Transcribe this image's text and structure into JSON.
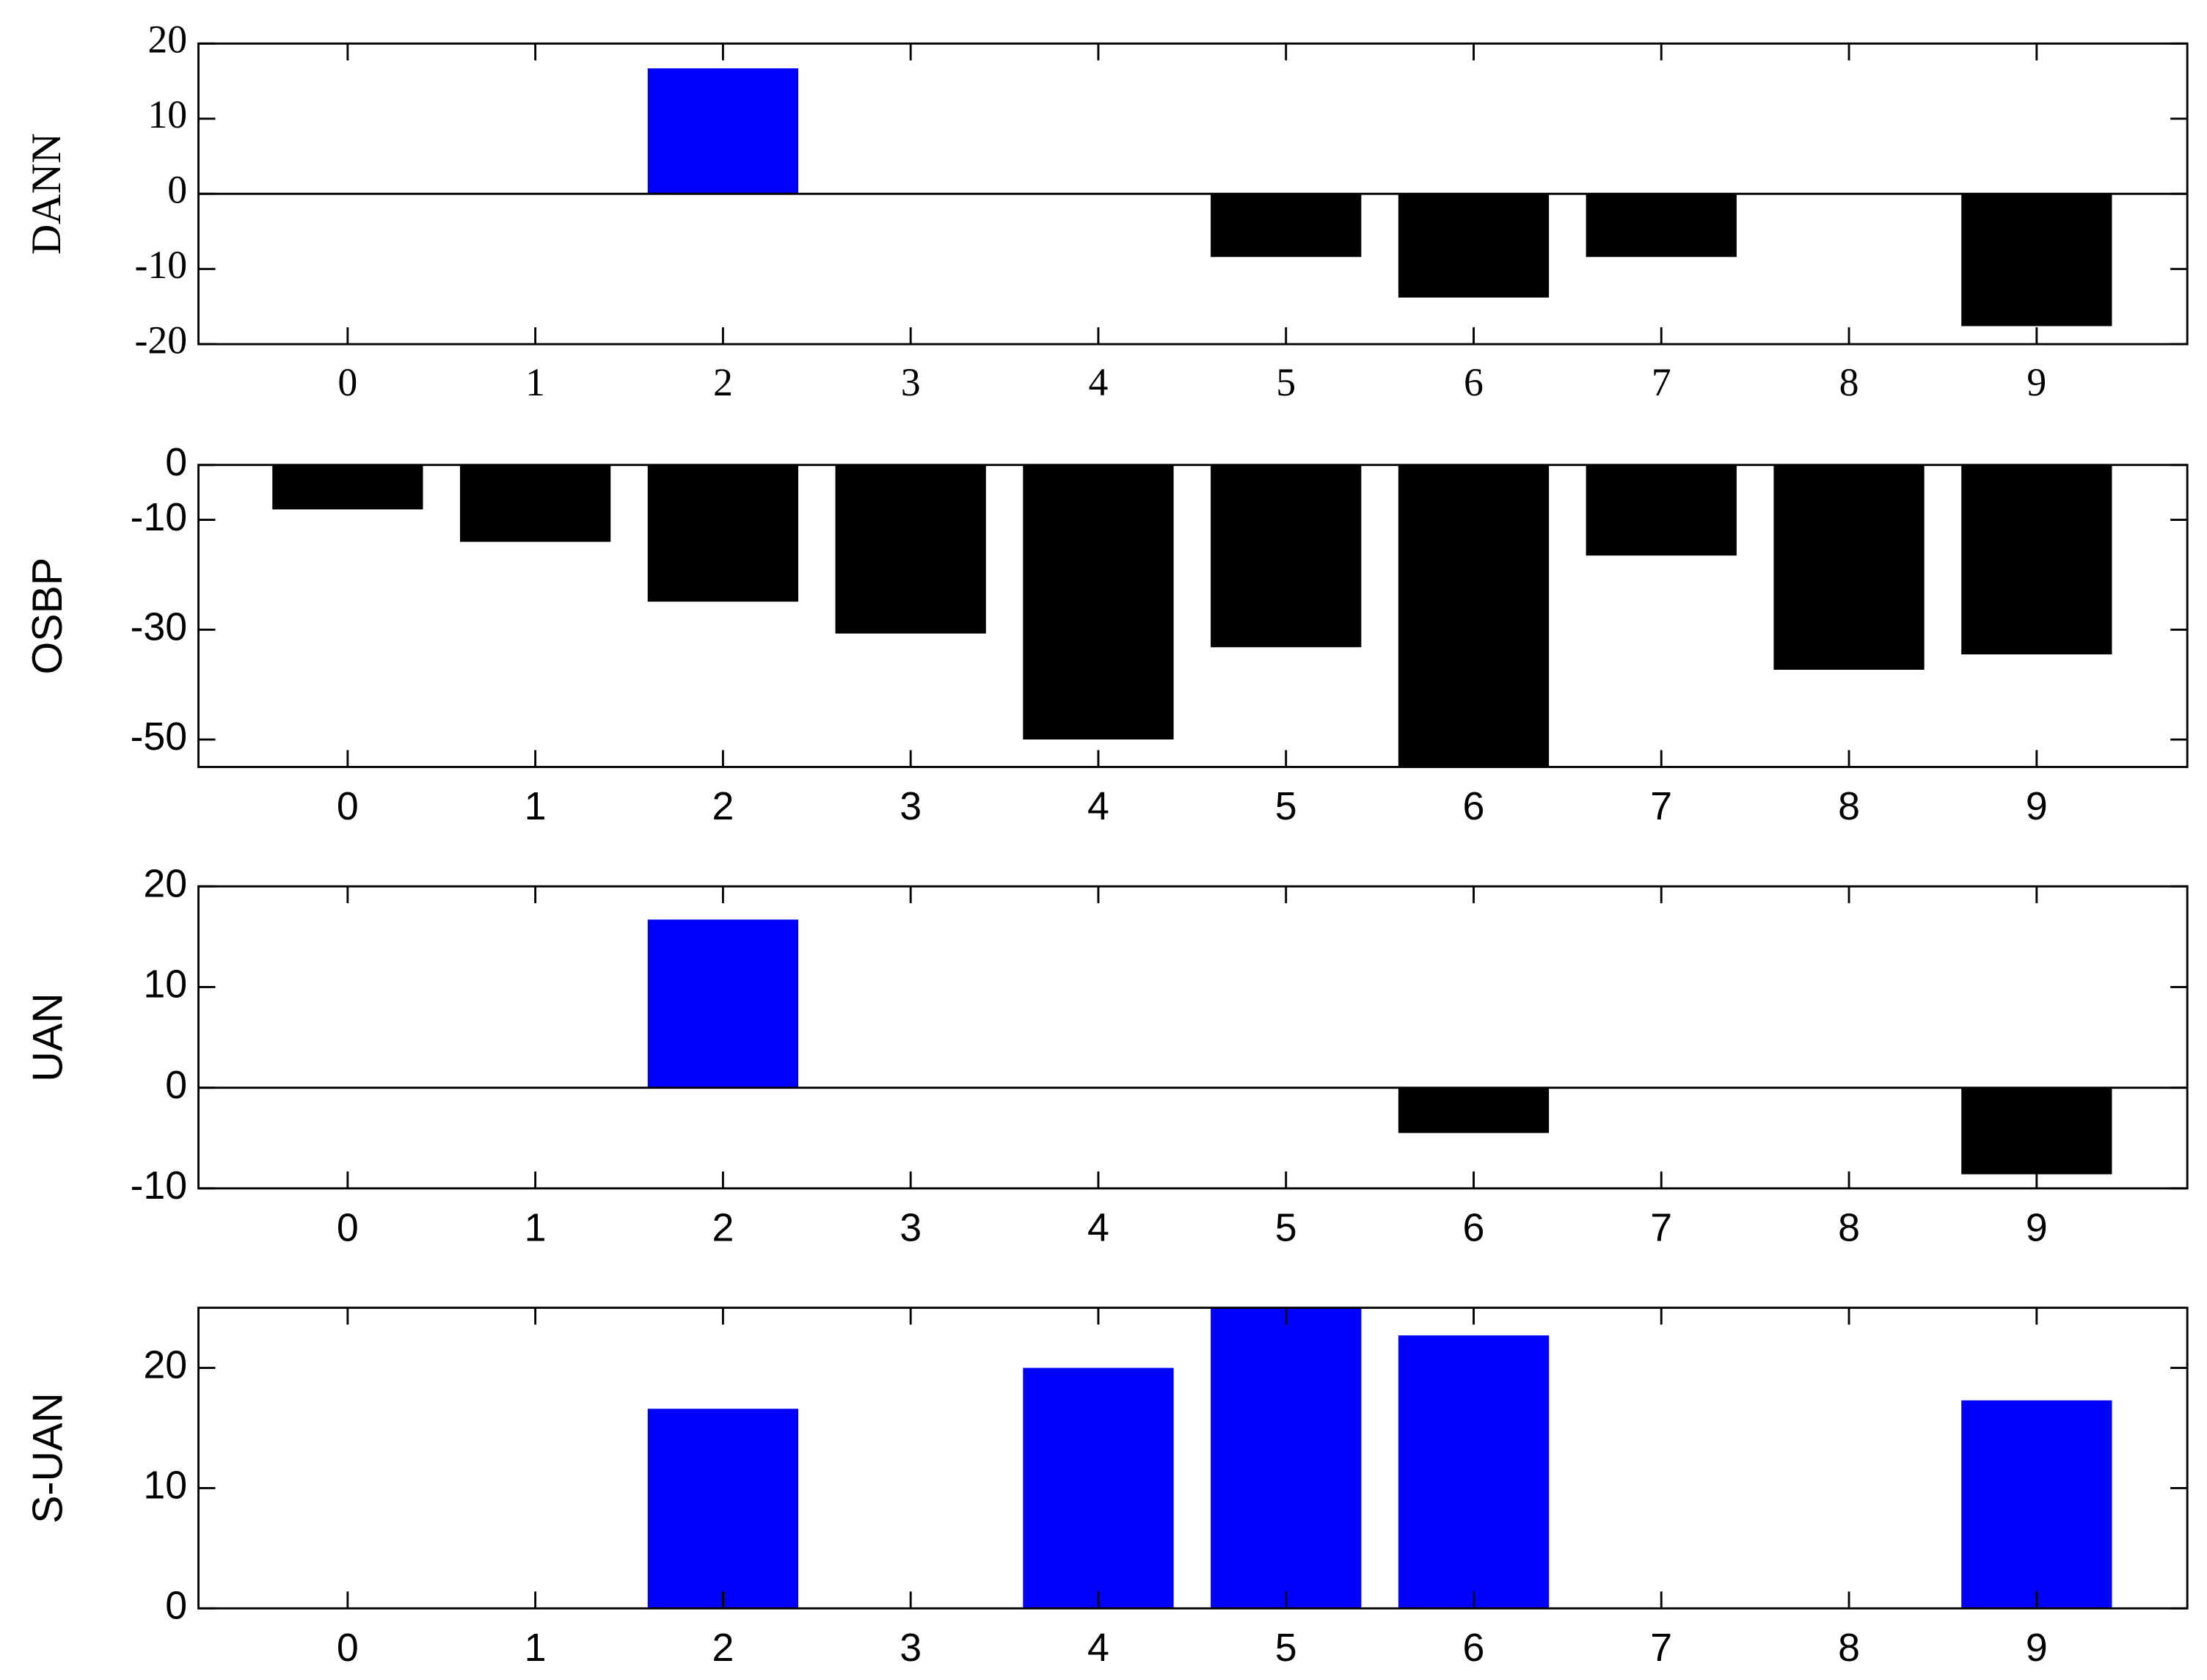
{
  "chart_data": [
    {
      "type": "bar",
      "ylabel": "DANN",
      "font": "serif",
      "categories": [
        "0",
        "1",
        "2",
        "3",
        "4",
        "5",
        "6",
        "7",
        "8",
        "9"
      ],
      "values": [
        0,
        0,
        16.7,
        0,
        0,
        -8.4,
        -13.8,
        -8.4,
        0,
        -17.6
      ],
      "ylim": [
        -20,
        20
      ],
      "yticks": [
        -20,
        -10,
        0,
        10,
        20
      ],
      "color_positive": "#0000ff",
      "color_negative": "#000000",
      "zero_line": true
    },
    {
      "type": "bar",
      "ylabel": "OSBP",
      "font": "sans-serif",
      "categories": [
        "0",
        "1",
        "2",
        "3",
        "4",
        "5",
        "6",
        "7",
        "8",
        "9"
      ],
      "values": [
        -8.1,
        -14,
        -24.9,
        -30.7,
        -50,
        -33.2,
        -55,
        -16.5,
        -37.3,
        -34.5
      ],
      "ylim": [
        -55,
        0
      ],
      "yticks": [
        -50,
        -30,
        -10,
        0
      ],
      "color_positive": "#0000ff",
      "color_negative": "#000000",
      "zero_line": false
    },
    {
      "type": "bar",
      "ylabel": "UAN",
      "font": "sans-serif",
      "categories": [
        "0",
        "1",
        "2",
        "3",
        "4",
        "5",
        "6",
        "7",
        "8",
        "9"
      ],
      "values": [
        0,
        0,
        16.7,
        0,
        0,
        0,
        -4.5,
        0,
        0,
        -8.6
      ],
      "ylim": [
        -10,
        20
      ],
      "yticks": [
        -10,
        0,
        10,
        20
      ],
      "color_positive": "#0000ff",
      "color_negative": "#000000",
      "zero_line": true
    },
    {
      "type": "bar",
      "ylabel": "S-UAN",
      "font": "sans-serif",
      "categories": [
        "0",
        "1",
        "2",
        "3",
        "4",
        "5",
        "6",
        "7",
        "8",
        "9"
      ],
      "values": [
        0,
        0,
        16.6,
        0,
        20,
        25,
        22.7,
        0,
        0,
        17.3
      ],
      "ylim": [
        0,
        25
      ],
      "yticks": [
        0,
        10,
        20
      ],
      "color_positive": "#0000ff",
      "color_negative": "#000000",
      "zero_line": false
    }
  ]
}
